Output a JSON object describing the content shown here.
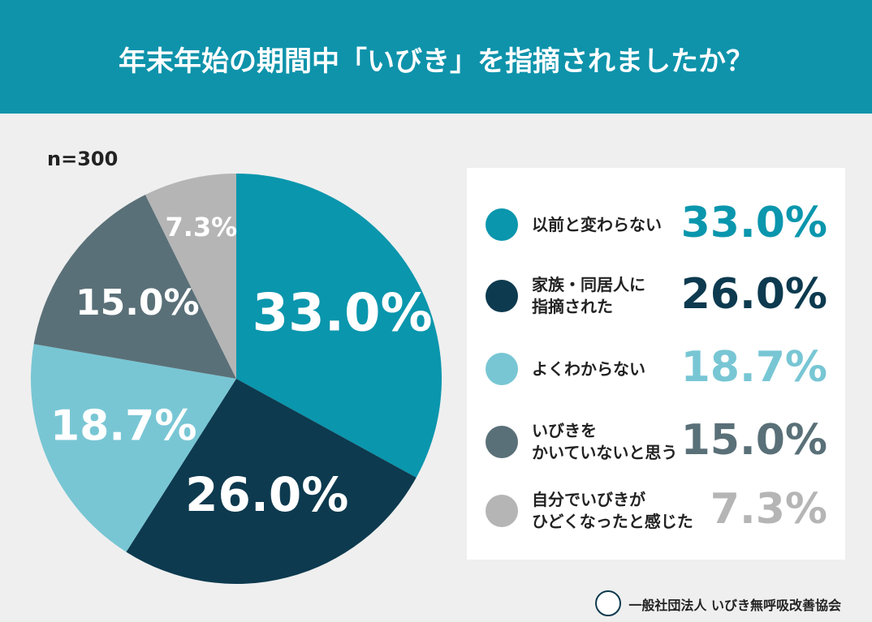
{
  "chart_data": {
    "type": "pie",
    "title": "年末年始の期間中「いびき」を指摘されましたか？",
    "note": "n=300",
    "categories": [
      "以前と変わらない",
      "家族・同居人に\n指摘された",
      "よくわからない",
      "いびきを\nかいていないと思う",
      "自分でいびきが\nひどくなったと感じた"
    ],
    "values": [
      33.0,
      26.0,
      18.7,
      15.0,
      7.3
    ],
    "value_labels": [
      "33.0%",
      "26.0%",
      "18.7%",
      "15.0%",
      "7.3%"
    ],
    "colors": [
      "#0a96ad",
      "#0d3a4f",
      "#78c6d4",
      "#5a7078",
      "#b5b5b5"
    ],
    "source": "一般社団法人 いびき無呼吸改善協会"
  }
}
